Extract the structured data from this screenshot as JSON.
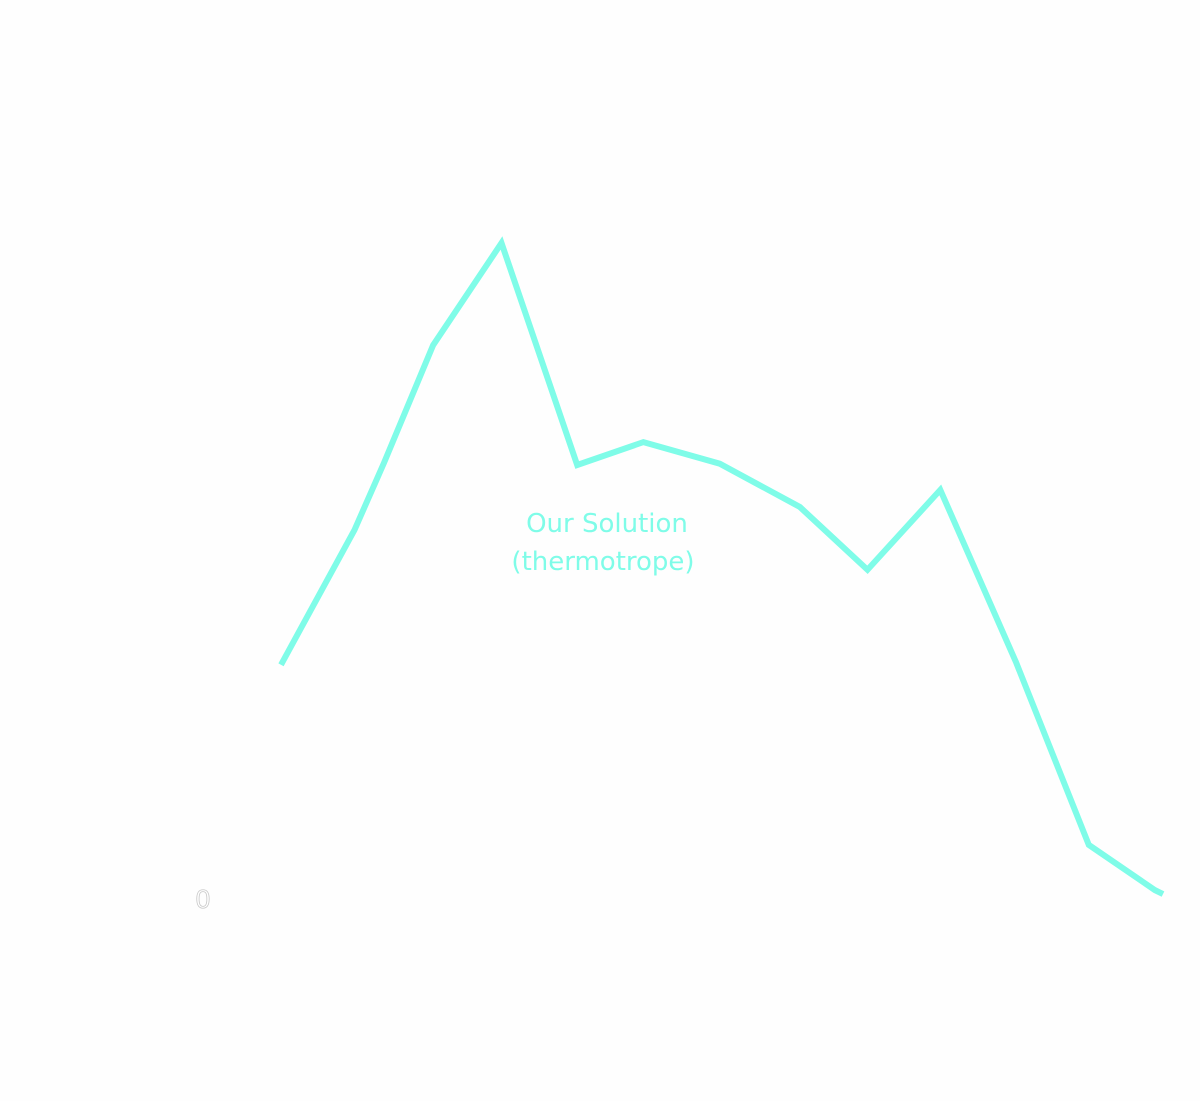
{
  "chart_data": {
    "type": "line",
    "title": "",
    "xlabel": "",
    "ylabel": "",
    "ylim": [
      0,
      100
    ],
    "grid": false,
    "y_ticks": [
      "0"
    ],
    "series": [
      {
        "name": "Our Solution (thermotrope)",
        "color": "#7ffce8",
        "x": [
          0,
          1.0,
          1.4,
          2.07,
          3.0,
          4.03,
          4.93,
          5.97,
          7.06,
          7.98,
          8.97,
          10.0,
          10.99,
          11.89,
          12.0
        ],
        "values": [
          35.6,
          56.2,
          66.4,
          84.4,
          100,
          66.1,
          69.6,
          66.3,
          59.7,
          50.1,
          62.3,
          36.0,
          8.1,
          1.2,
          0.6
        ]
      }
    ],
    "annotation": {
      "line1": "Our Solution",
      "line2": "(thermotrope)"
    }
  }
}
